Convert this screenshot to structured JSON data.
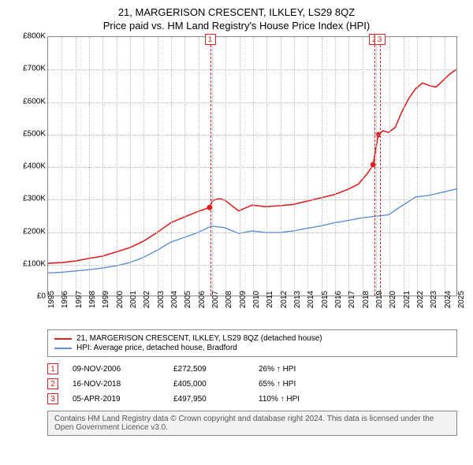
{
  "title": "21, MARGERISON CRESCENT, ILKLEY, LS29 8QZ",
  "subtitle": "Price paid vs. HM Land Registry's House Price Index (HPI)",
  "chart": {
    "type": "line",
    "background_color": "#ffffff",
    "grid_color": "#bbbbbb",
    "axis_color": "#888888",
    "title_fontsize": 13,
    "label_fontsize": 10,
    "x": {
      "min": 1995,
      "max": 2025,
      "tick_step": 1,
      "ticks": [
        1995,
        1996,
        1997,
        1998,
        1999,
        2000,
        2001,
        2002,
        2003,
        2004,
        2005,
        2006,
        2007,
        2008,
        2009,
        2010,
        2011,
        2012,
        2013,
        2014,
        2015,
        2016,
        2017,
        2018,
        2019,
        2020,
        2021,
        2022,
        2023,
        2024,
        2025
      ]
    },
    "y": {
      "min": 0,
      "max": 800000,
      "tick_step": 100000,
      "prefix": "£",
      "format": "K",
      "ticks": [
        0,
        100000,
        200000,
        300000,
        400000,
        500000,
        600000,
        700000,
        800000
      ]
    },
    "series": [
      {
        "id": "subject",
        "label": "21, MARGERISON CRESCENT, ILKLEY, LS29 8QZ (detached house)",
        "color": "#e02020",
        "line_width": 1.6,
        "points": [
          [
            1995,
            100000
          ],
          [
            1996,
            102000
          ],
          [
            1997,
            107000
          ],
          [
            1998,
            115000
          ],
          [
            1999,
            122000
          ],
          [
            2000,
            135000
          ],
          [
            2001,
            148000
          ],
          [
            2002,
            168000
          ],
          [
            2003,
            195000
          ],
          [
            2004,
            225000
          ],
          [
            2005,
            243000
          ],
          [
            2006,
            260000
          ],
          [
            2006.86,
            272509
          ],
          [
            2007.1,
            295000
          ],
          [
            2007.6,
            300000
          ],
          [
            2008,
            295000
          ],
          [
            2008.5,
            278000
          ],
          [
            2009,
            262000
          ],
          [
            2010,
            280000
          ],
          [
            2011,
            275000
          ],
          [
            2012,
            278000
          ],
          [
            2013,
            282000
          ],
          [
            2014,
            292000
          ],
          [
            2015,
            302000
          ],
          [
            2016,
            312000
          ],
          [
            2017,
            328000
          ],
          [
            2017.8,
            345000
          ],
          [
            2018.5,
            380000
          ],
          [
            2018.88,
            405000
          ],
          [
            2019.26,
            497950
          ],
          [
            2019.6,
            510000
          ],
          [
            2020,
            505000
          ],
          [
            2020.5,
            520000
          ],
          [
            2021,
            570000
          ],
          [
            2021.5,
            610000
          ],
          [
            2022,
            640000
          ],
          [
            2022.5,
            658000
          ],
          [
            2023,
            650000
          ],
          [
            2023.5,
            645000
          ],
          [
            2024,
            665000
          ],
          [
            2024.5,
            685000
          ],
          [
            2025,
            700000
          ]
        ]
      },
      {
        "id": "hpi",
        "label": "HPI: Average price, detached house, Bradford",
        "color": "#5b8fd6",
        "line_width": 1.4,
        "points": [
          [
            1995,
            70000
          ],
          [
            1996,
            72000
          ],
          [
            1997,
            76000
          ],
          [
            1998,
            80000
          ],
          [
            1999,
            85000
          ],
          [
            2000,
            92000
          ],
          [
            2001,
            102000
          ],
          [
            2002,
            118000
          ],
          [
            2003,
            140000
          ],
          [
            2004,
            165000
          ],
          [
            2005,
            180000
          ],
          [
            2006,
            195000
          ],
          [
            2007,
            215000
          ],
          [
            2008,
            210000
          ],
          [
            2009,
            192000
          ],
          [
            2010,
            200000
          ],
          [
            2011,
            195000
          ],
          [
            2012,
            195000
          ],
          [
            2013,
            200000
          ],
          [
            2014,
            208000
          ],
          [
            2015,
            215000
          ],
          [
            2016,
            225000
          ],
          [
            2017,
            232000
          ],
          [
            2018,
            240000
          ],
          [
            2019,
            245000
          ],
          [
            2020,
            250000
          ],
          [
            2021,
            278000
          ],
          [
            2022,
            305000
          ],
          [
            2023,
            310000
          ],
          [
            2024,
            320000
          ],
          [
            2025,
            330000
          ]
        ]
      }
    ],
    "sale_markers": [
      {
        "n": 1,
        "x": 2006.86,
        "y": 272509
      },
      {
        "n": 2,
        "x": 2018.88,
        "y": 405000
      },
      {
        "n": 3,
        "x": 2019.26,
        "y": 497950
      }
    ],
    "marker_color": "#e02020",
    "sale_line_color": "#e02020"
  },
  "legend": {
    "items": [
      {
        "color": "#e02020",
        "label": "21, MARGERISON CRESCENT, ILKLEY, LS29 8QZ (detached house)"
      },
      {
        "color": "#5b8fd6",
        "label": "HPI: Average price, detached house, Bradford"
      }
    ]
  },
  "sales": [
    {
      "n": "1",
      "date": "09-NOV-2006",
      "price": "£272,509",
      "diff": "26% ↑ HPI"
    },
    {
      "n": "2",
      "date": "16-NOV-2018",
      "price": "£405,000",
      "diff": "65% ↑ HPI"
    },
    {
      "n": "3",
      "date": "05-APR-2019",
      "price": "£497,950",
      "diff": "110% ↑ HPI"
    }
  ],
  "attribution": "Contains HM Land Registry data © Crown copyright and database right 2024. This data is licensed under the Open Government Licence v3.0."
}
